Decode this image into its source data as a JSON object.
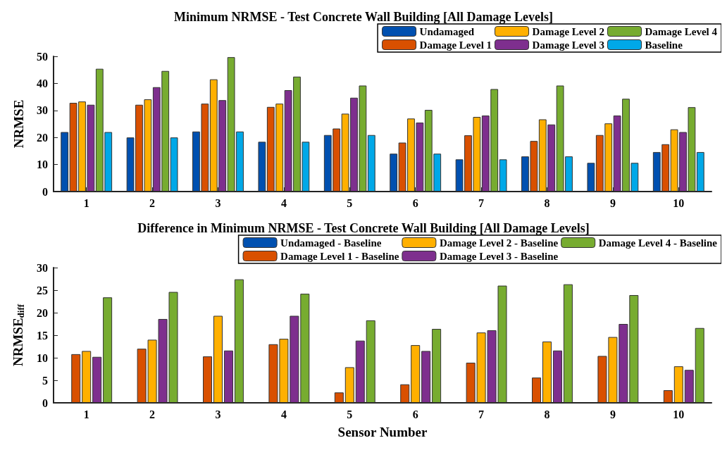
{
  "chart_data": [
    {
      "type": "bar",
      "title": "Minimum NRMSE - Test Concrete Wall Building [All Damage Levels]",
      "ylabel": "NRMSE",
      "categories": [
        "1",
        "2",
        "3",
        "4",
        "5",
        "6",
        "7",
        "8",
        "9",
        "10"
      ],
      "ylim": [
        0,
        50
      ],
      "yticks": [
        0,
        10,
        20,
        30,
        40,
        50
      ],
      "grid": false,
      "legend": "top right",
      "series": [
        {
          "name": "Undamaged",
          "color": "#0050b0",
          "values": [
            22.0,
            20.0,
            22.2,
            18.4,
            20.9,
            14.0,
            11.9,
            13.0,
            10.6,
            14.6
          ]
        },
        {
          "name": "Damage Level 1",
          "color": "#d95000",
          "values": [
            32.8,
            32.1,
            32.5,
            31.3,
            23.3,
            18.1,
            20.8,
            18.7,
            20.9,
            17.5
          ]
        },
        {
          "name": "Damage Level 2",
          "color": "#ffb000",
          "values": [
            33.3,
            34.1,
            41.5,
            32.5,
            28.8,
            27.0,
            27.6,
            26.7,
            25.2,
            23.0
          ]
        },
        {
          "name": "Damage Level 3",
          "color": "#7e2f8e",
          "values": [
            32.1,
            38.6,
            33.8,
            37.5,
            34.7,
            25.5,
            28.1,
            24.8,
            28.1,
            22.0
          ]
        },
        {
          "name": "Damage Level 4",
          "color": "#77ac30",
          "values": [
            45.4,
            44.6,
            49.7,
            42.5,
            39.2,
            30.2,
            37.9,
            39.2,
            34.3,
            31.2
          ]
        },
        {
          "name": "Baseline",
          "color": "#00a8e8",
          "values": [
            22.0,
            20.0,
            22.2,
            18.4,
            20.9,
            14.0,
            11.9,
            13.0,
            10.6,
            14.6
          ]
        }
      ]
    },
    {
      "type": "bar",
      "title": "Difference in Minimum NRMSE - Test Concrete Wall Building [All Damage Levels]",
      "xlabel": "Sensor Number",
      "ylabel": "NRMSE$_{diff}$",
      "categories": [
        "1",
        "2",
        "3",
        "4",
        "5",
        "6",
        "7",
        "8",
        "9",
        "10"
      ],
      "ylim": [
        0,
        30
      ],
      "yticks": [
        0,
        5,
        10,
        15,
        20,
        25,
        30
      ],
      "grid": false,
      "legend": "top right",
      "series": [
        {
          "name": "Undamaged - Baseline",
          "color": "#0050b0",
          "values": [
            0,
            0,
            0,
            0,
            0,
            0,
            0,
            0,
            0,
            0
          ]
        },
        {
          "name": "Damage Level 1 - Baseline",
          "color": "#d95000",
          "values": [
            10.8,
            12.0,
            10.3,
            13.0,
            2.3,
            4.1,
            8.9,
            5.6,
            10.4,
            2.8
          ]
        },
        {
          "name": "Damage Level 2 - Baseline",
          "color": "#ffb000",
          "values": [
            11.5,
            14.0,
            19.3,
            14.2,
            7.9,
            12.8,
            15.6,
            13.6,
            14.6,
            8.1
          ]
        },
        {
          "name": "Damage Level 3 - Baseline",
          "color": "#7e2f8e",
          "values": [
            10.2,
            18.6,
            11.6,
            19.3,
            13.8,
            11.5,
            16.1,
            11.6,
            17.5,
            7.3
          ]
        },
        {
          "name": "Damage Level 4 - Baseline",
          "color": "#77ac30",
          "values": [
            23.4,
            24.6,
            27.4,
            24.2,
            18.3,
            16.4,
            26.0,
            26.3,
            23.9,
            16.6
          ]
        }
      ]
    }
  ]
}
